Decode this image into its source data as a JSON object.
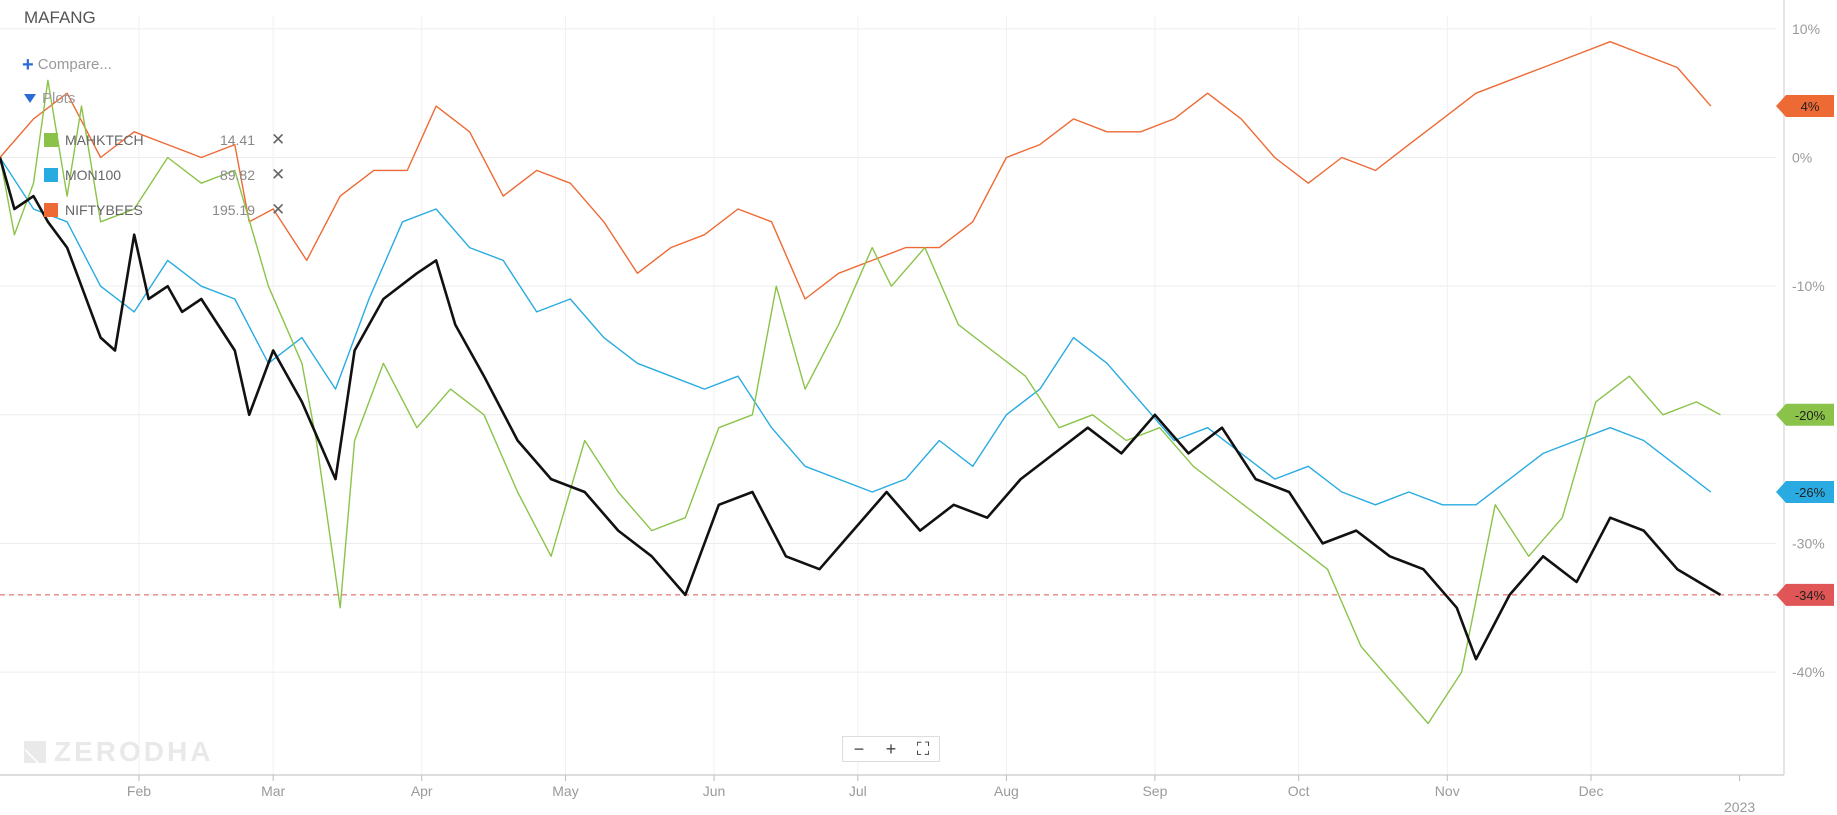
{
  "chart_title": "MAFANG",
  "compare_label": "Compare...",
  "plots_label": "Plots",
  "legend": [
    {
      "symbol": "MAHKTECH",
      "value": "14.41",
      "color": "#8bc34a"
    },
    {
      "symbol": "MON100",
      "value": "89.82",
      "color": "#29abe2"
    },
    {
      "symbol": "NIFTYBEES",
      "value": "195.19",
      "color": "#ee6a35"
    }
  ],
  "watermark": "ZERODHA",
  "zoom_controls": {
    "minus": "−",
    "plus": "+",
    "fullscreen": "⛶"
  },
  "colors": {
    "main": "#111111",
    "niftybees": "#ee6a35",
    "mon100": "#29abe2",
    "mahktech": "#8bc34a",
    "reference": "#e05555",
    "grid": "#ececec"
  },
  "chart_data": {
    "type": "line",
    "title": "MAFANG",
    "x_axis": {
      "ticks": [
        "Feb",
        "Mar",
        "Apr",
        "May",
        "Jun",
        "Jul",
        "Aug",
        "Sep",
        "Oct",
        "Nov",
        "Dec",
        "2023"
      ],
      "start": "2022-01-03",
      "end": "2022-12-30"
    },
    "y_axis": {
      "unit": "%",
      "ylim": [
        -48,
        11
      ],
      "ticks": [
        10,
        0,
        -10,
        -20,
        -30,
        -40
      ],
      "position": "right"
    },
    "reference_line": {
      "value": -34,
      "label": "-34%"
    },
    "badges": [
      {
        "label": "4%",
        "value": 4,
        "color": "#ee6a35"
      },
      {
        "label": "-20%",
        "value": -20,
        "color": "#8bc34a"
      },
      {
        "label": "-26%",
        "value": -26,
        "color": "#29abe2"
      },
      {
        "label": "-34%",
        "value": -34,
        "color": "#e05555"
      }
    ],
    "series": [
      {
        "name": "NIFTYBEES",
        "color": "#ee6a35",
        "points": [
          [
            "2022-01-03",
            0
          ],
          [
            "2022-01-10",
            3
          ],
          [
            "2022-01-17",
            5
          ],
          [
            "2022-01-24",
            0
          ],
          [
            "2022-01-31",
            2
          ],
          [
            "2022-02-07",
            1
          ],
          [
            "2022-02-14",
            0
          ],
          [
            "2022-02-21",
            1
          ],
          [
            "2022-02-24",
            -5
          ],
          [
            "2022-03-01",
            -4
          ],
          [
            "2022-03-08",
            -8
          ],
          [
            "2022-03-15",
            -3
          ],
          [
            "2022-03-22",
            -1
          ],
          [
            "2022-03-29",
            -1
          ],
          [
            "2022-04-04",
            4
          ],
          [
            "2022-04-11",
            2
          ],
          [
            "2022-04-18",
            -3
          ],
          [
            "2022-04-25",
            -1
          ],
          [
            "2022-05-02",
            -2
          ],
          [
            "2022-05-09",
            -5
          ],
          [
            "2022-05-16",
            -9
          ],
          [
            "2022-05-23",
            -7
          ],
          [
            "2022-05-30",
            -6
          ],
          [
            "2022-06-06",
            -4
          ],
          [
            "2022-06-13",
            -5
          ],
          [
            "2022-06-20",
            -11
          ],
          [
            "2022-06-27",
            -9
          ],
          [
            "2022-07-04",
            -8
          ],
          [
            "2022-07-11",
            -7
          ],
          [
            "2022-07-18",
            -7
          ],
          [
            "2022-07-25",
            -5
          ],
          [
            "2022-08-01",
            0
          ],
          [
            "2022-08-08",
            1
          ],
          [
            "2022-08-15",
            3
          ],
          [
            "2022-08-22",
            2
          ],
          [
            "2022-08-29",
            2
          ],
          [
            "2022-09-05",
            3
          ],
          [
            "2022-09-12",
            5
          ],
          [
            "2022-09-19",
            3
          ],
          [
            "2022-09-26",
            0
          ],
          [
            "2022-10-03",
            -2
          ],
          [
            "2022-10-10",
            0
          ],
          [
            "2022-10-17",
            -1
          ],
          [
            "2022-10-24",
            1
          ],
          [
            "2022-10-31",
            3
          ],
          [
            "2022-11-07",
            5
          ],
          [
            "2022-11-14",
            6
          ],
          [
            "2022-11-21",
            7
          ],
          [
            "2022-11-28",
            8
          ],
          [
            "2022-12-05",
            9
          ],
          [
            "2022-12-12",
            8
          ],
          [
            "2022-12-19",
            7
          ],
          [
            "2022-12-26",
            4
          ]
        ]
      },
      {
        "name": "MON100",
        "color": "#29abe2",
        "points": [
          [
            "2022-01-03",
            0
          ],
          [
            "2022-01-10",
            -4
          ],
          [
            "2022-01-17",
            -5
          ],
          [
            "2022-01-24",
            -10
          ],
          [
            "2022-01-31",
            -12
          ],
          [
            "2022-02-07",
            -8
          ],
          [
            "2022-02-14",
            -10
          ],
          [
            "2022-02-21",
            -11
          ],
          [
            "2022-02-28",
            -16
          ],
          [
            "2022-03-07",
            -14
          ],
          [
            "2022-03-14",
            -18
          ],
          [
            "2022-03-21",
            -11
          ],
          [
            "2022-03-28",
            -5
          ],
          [
            "2022-04-04",
            -4
          ],
          [
            "2022-04-11",
            -7
          ],
          [
            "2022-04-18",
            -8
          ],
          [
            "2022-04-25",
            -12
          ],
          [
            "2022-05-02",
            -11
          ],
          [
            "2022-05-09",
            -14
          ],
          [
            "2022-05-16",
            -16
          ],
          [
            "2022-05-23",
            -17
          ],
          [
            "2022-05-30",
            -18
          ],
          [
            "2022-06-06",
            -17
          ],
          [
            "2022-06-13",
            -21
          ],
          [
            "2022-06-20",
            -24
          ],
          [
            "2022-06-27",
            -25
          ],
          [
            "2022-07-04",
            -26
          ],
          [
            "2022-07-11",
            -25
          ],
          [
            "2022-07-18",
            -22
          ],
          [
            "2022-07-25",
            -24
          ],
          [
            "2022-08-01",
            -20
          ],
          [
            "2022-08-08",
            -18
          ],
          [
            "2022-08-15",
            -14
          ],
          [
            "2022-08-22",
            -16
          ],
          [
            "2022-08-29",
            -19
          ],
          [
            "2022-09-05",
            -22
          ],
          [
            "2022-09-12",
            -21
          ],
          [
            "2022-09-19",
            -23
          ],
          [
            "2022-09-26",
            -25
          ],
          [
            "2022-10-03",
            -24
          ],
          [
            "2022-10-10",
            -26
          ],
          [
            "2022-10-17",
            -27
          ],
          [
            "2022-10-24",
            -26
          ],
          [
            "2022-10-31",
            -27
          ],
          [
            "2022-11-07",
            -27
          ],
          [
            "2022-11-14",
            -25
          ],
          [
            "2022-11-21",
            -23
          ],
          [
            "2022-11-28",
            -22
          ],
          [
            "2022-12-05",
            -21
          ],
          [
            "2022-12-12",
            -22
          ],
          [
            "2022-12-19",
            -24
          ],
          [
            "2022-12-26",
            -26
          ]
        ]
      },
      {
        "name": "MAHKTECH",
        "color": "#8bc34a",
        "points": [
          [
            "2022-01-03",
            0
          ],
          [
            "2022-01-06",
            -6
          ],
          [
            "2022-01-10",
            -2
          ],
          [
            "2022-01-13",
            6
          ],
          [
            "2022-01-17",
            -3
          ],
          [
            "2022-01-20",
            4
          ],
          [
            "2022-01-24",
            -5
          ],
          [
            "2022-01-31",
            -4
          ],
          [
            "2022-02-07",
            0
          ],
          [
            "2022-02-14",
            -2
          ],
          [
            "2022-02-21",
            -1
          ],
          [
            "2022-02-28",
            -10
          ],
          [
            "2022-03-07",
            -16
          ],
          [
            "2022-03-10",
            -22
          ],
          [
            "2022-03-15",
            -35
          ],
          [
            "2022-03-18",
            -22
          ],
          [
            "2022-03-24",
            -16
          ],
          [
            "2022-03-31",
            -21
          ],
          [
            "2022-04-07",
            -18
          ],
          [
            "2022-04-14",
            -20
          ],
          [
            "2022-04-21",
            -26
          ],
          [
            "2022-04-28",
            -31
          ],
          [
            "2022-05-05",
            -22
          ],
          [
            "2022-05-12",
            -26
          ],
          [
            "2022-05-19",
            -29
          ],
          [
            "2022-05-26",
            -28
          ],
          [
            "2022-06-02",
            -21
          ],
          [
            "2022-06-09",
            -20
          ],
          [
            "2022-06-14",
            -10
          ],
          [
            "2022-06-20",
            -18
          ],
          [
            "2022-06-27",
            -13
          ],
          [
            "2022-07-04",
            -7
          ],
          [
            "2022-07-08",
            -10
          ],
          [
            "2022-07-15",
            -7
          ],
          [
            "2022-07-22",
            -13
          ],
          [
            "2022-07-29",
            -15
          ],
          [
            "2022-08-05",
            -17
          ],
          [
            "2022-08-12",
            -21
          ],
          [
            "2022-08-19",
            -20
          ],
          [
            "2022-08-26",
            -22
          ],
          [
            "2022-09-02",
            -21
          ],
          [
            "2022-09-09",
            -24
          ],
          [
            "2022-09-16",
            -26
          ],
          [
            "2022-09-23",
            -28
          ],
          [
            "2022-09-30",
            -30
          ],
          [
            "2022-10-07",
            -32
          ],
          [
            "2022-10-14",
            -38
          ],
          [
            "2022-10-21",
            -41
          ],
          [
            "2022-10-28",
            -44
          ],
          [
            "2022-11-04",
            -40
          ],
          [
            "2022-11-11",
            -27
          ],
          [
            "2022-11-18",
            -31
          ],
          [
            "2022-11-25",
            -28
          ],
          [
            "2022-12-02",
            -19
          ],
          [
            "2022-12-09",
            -17
          ],
          [
            "2022-12-16",
            -20
          ],
          [
            "2022-12-23",
            -19
          ],
          [
            "2022-12-28",
            -20
          ]
        ]
      },
      {
        "name": "MAFANG",
        "color": "#111111",
        "points": [
          [
            "2022-01-03",
            0
          ],
          [
            "2022-01-06",
            -4
          ],
          [
            "2022-01-10",
            -3
          ],
          [
            "2022-01-13",
            -5
          ],
          [
            "2022-01-17",
            -7
          ],
          [
            "2022-01-20",
            -10
          ],
          [
            "2022-01-24",
            -14
          ],
          [
            "2022-01-27",
            -15
          ],
          [
            "2022-01-31",
            -6
          ],
          [
            "2022-02-03",
            -11
          ],
          [
            "2022-02-07",
            -10
          ],
          [
            "2022-02-10",
            -12
          ],
          [
            "2022-02-14",
            -11
          ],
          [
            "2022-02-21",
            -15
          ],
          [
            "2022-02-24",
            -20
          ],
          [
            "2022-03-01",
            -15
          ],
          [
            "2022-03-07",
            -19
          ],
          [
            "2022-03-14",
            -25
          ],
          [
            "2022-03-18",
            -15
          ],
          [
            "2022-03-24",
            -11
          ],
          [
            "2022-03-31",
            -9
          ],
          [
            "2022-04-04",
            -8
          ],
          [
            "2022-04-08",
            -13
          ],
          [
            "2022-04-14",
            -17
          ],
          [
            "2022-04-21",
            -22
          ],
          [
            "2022-04-28",
            -25
          ],
          [
            "2022-05-05",
            -26
          ],
          [
            "2022-05-12",
            -29
          ],
          [
            "2022-05-19",
            -31
          ],
          [
            "2022-05-26",
            -34
          ],
          [
            "2022-06-02",
            -27
          ],
          [
            "2022-06-09",
            -26
          ],
          [
            "2022-06-16",
            -31
          ],
          [
            "2022-06-23",
            -32
          ],
          [
            "2022-06-30",
            -29
          ],
          [
            "2022-07-07",
            -26
          ],
          [
            "2022-07-14",
            -29
          ],
          [
            "2022-07-21",
            -27
          ],
          [
            "2022-07-28",
            -28
          ],
          [
            "2022-08-04",
            -25
          ],
          [
            "2022-08-11",
            -23
          ],
          [
            "2022-08-18",
            -21
          ],
          [
            "2022-08-25",
            -23
          ],
          [
            "2022-09-01",
            -20
          ],
          [
            "2022-09-08",
            -23
          ],
          [
            "2022-09-15",
            -21
          ],
          [
            "2022-09-22",
            -25
          ],
          [
            "2022-09-29",
            -26
          ],
          [
            "2022-10-06",
            -30
          ],
          [
            "2022-10-13",
            -29
          ],
          [
            "2022-10-20",
            -31
          ],
          [
            "2022-10-27",
            -32
          ],
          [
            "2022-11-03",
            -35
          ],
          [
            "2022-11-07",
            -39
          ],
          [
            "2022-11-14",
            -34
          ],
          [
            "2022-11-21",
            -31
          ],
          [
            "2022-11-28",
            -33
          ],
          [
            "2022-12-05",
            -28
          ],
          [
            "2022-12-12",
            -29
          ],
          [
            "2022-12-19",
            -32
          ],
          [
            "2022-12-28",
            -34
          ]
        ]
      }
    ]
  }
}
